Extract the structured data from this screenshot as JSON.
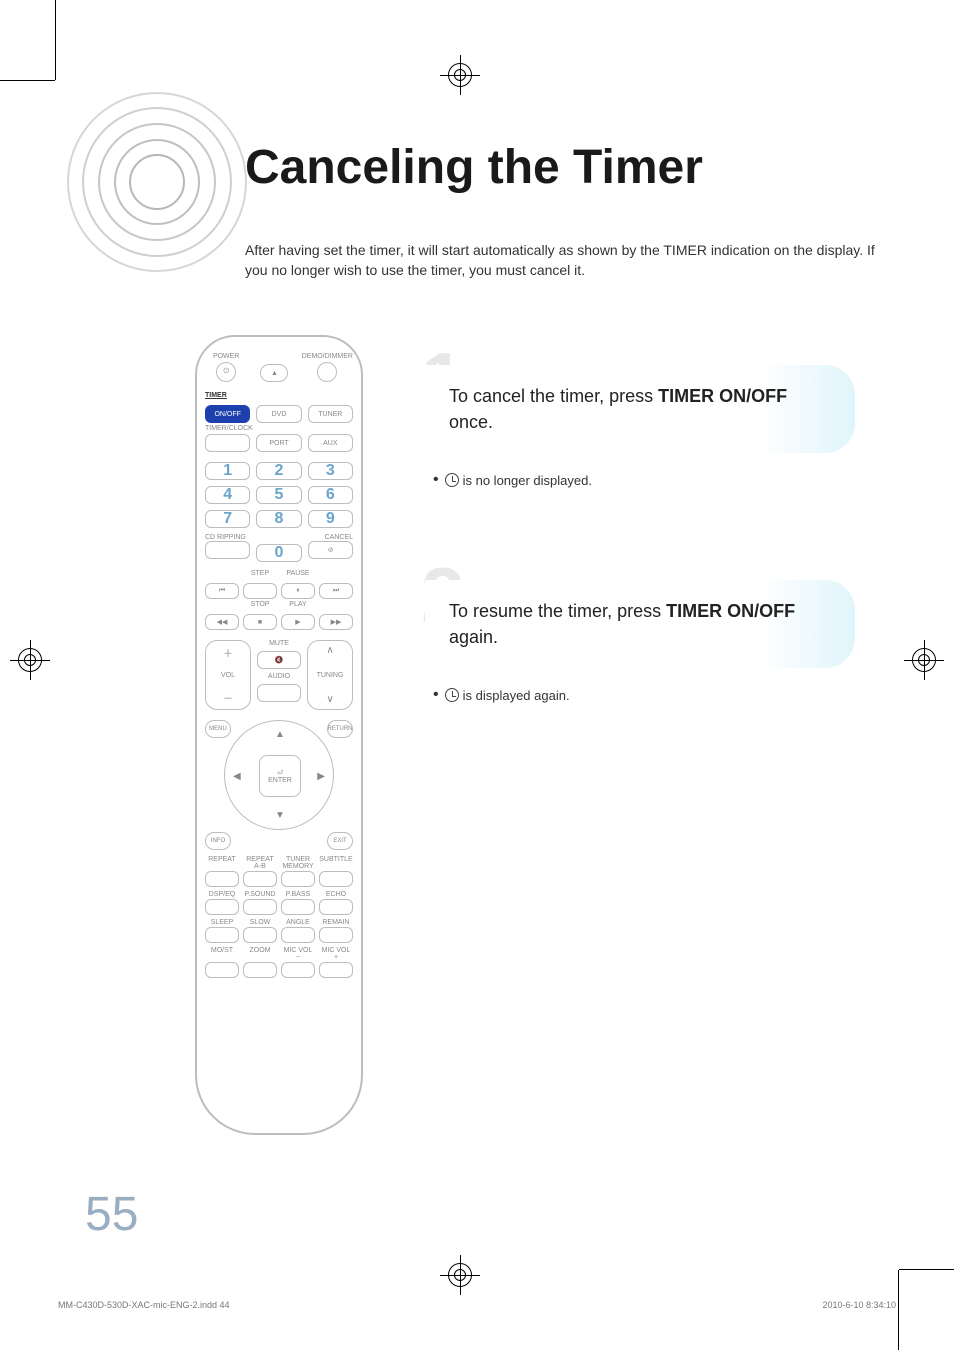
{
  "page": {
    "title": "Canceling the Timer",
    "intro": "After having set the timer, it will start automatically as shown by the TIMER indication on the display. If you no longer wish to use the timer, you must cancel it.",
    "page_number": "55"
  },
  "steps": [
    {
      "num": "1",
      "text_pre": "To cancel the timer, press ",
      "text_bold": "TIMER ON/OFF",
      "text_post": " once.",
      "note_post": " is no longer displayed."
    },
    {
      "num": "2",
      "text_pre": "To resume the timer, press ",
      "text_bold": "TIMER ON/OFF",
      "text_post": " again.",
      "note_post": " is displayed again."
    }
  ],
  "remote": {
    "top_labels": {
      "power": "POWER",
      "demo": "DEMO/DIMMER"
    },
    "timer_section": {
      "label": "TIMER",
      "onoff": "ON/OFF",
      "dvd": "DVD",
      "tuner": "TUNER",
      "timerclock": "TIMER/CLOCK",
      "port": "PORT",
      "aux": "AUX"
    },
    "numbers": [
      "1",
      "2",
      "3",
      "4",
      "5",
      "6",
      "7",
      "8",
      "9",
      "0"
    ],
    "cdripping": "CD RIPPING",
    "cancel": "CANCEL",
    "transport": {
      "step": "STEP",
      "pause": "PAUSE",
      "stop": "STOP",
      "play": "PLAY"
    },
    "mid": {
      "mute": "MUTE",
      "vol": "VOL",
      "audio": "AUDIO",
      "tuning": "TUNING"
    },
    "nav": {
      "enter": "ENTER",
      "menu": "MENU",
      "return": "RETURN",
      "info": "INFO",
      "exit": "EXIT"
    },
    "bottom_rows": [
      [
        "REPEAT",
        "REPEAT A-B",
        "TUNER MEMORY",
        "SUBTITLE"
      ],
      [
        "DSP/EQ",
        "P.SOUND",
        "P.BASS",
        "ECHO"
      ],
      [
        "SLEEP",
        "SLOW",
        "ANGLE",
        "REMAIN"
      ],
      [
        "MO/ST",
        "ZOOM",
        "MIC VOL −",
        "MIC VOL +"
      ]
    ]
  },
  "footer": {
    "left": "MM-C430D-530D-XAC-mic-ENG-2.indd   44",
    "right": "2010-6-10   8:34:10"
  },
  "colors": {
    "title": "#1a1a1a",
    "step_num": "#e8e8e8",
    "callout_accent": "#dff5fb",
    "page_num": "#9aaec3",
    "remote_border": "#bdbdbd",
    "number_key": "#69a6c9",
    "highlight_btn": "#1e40af"
  }
}
